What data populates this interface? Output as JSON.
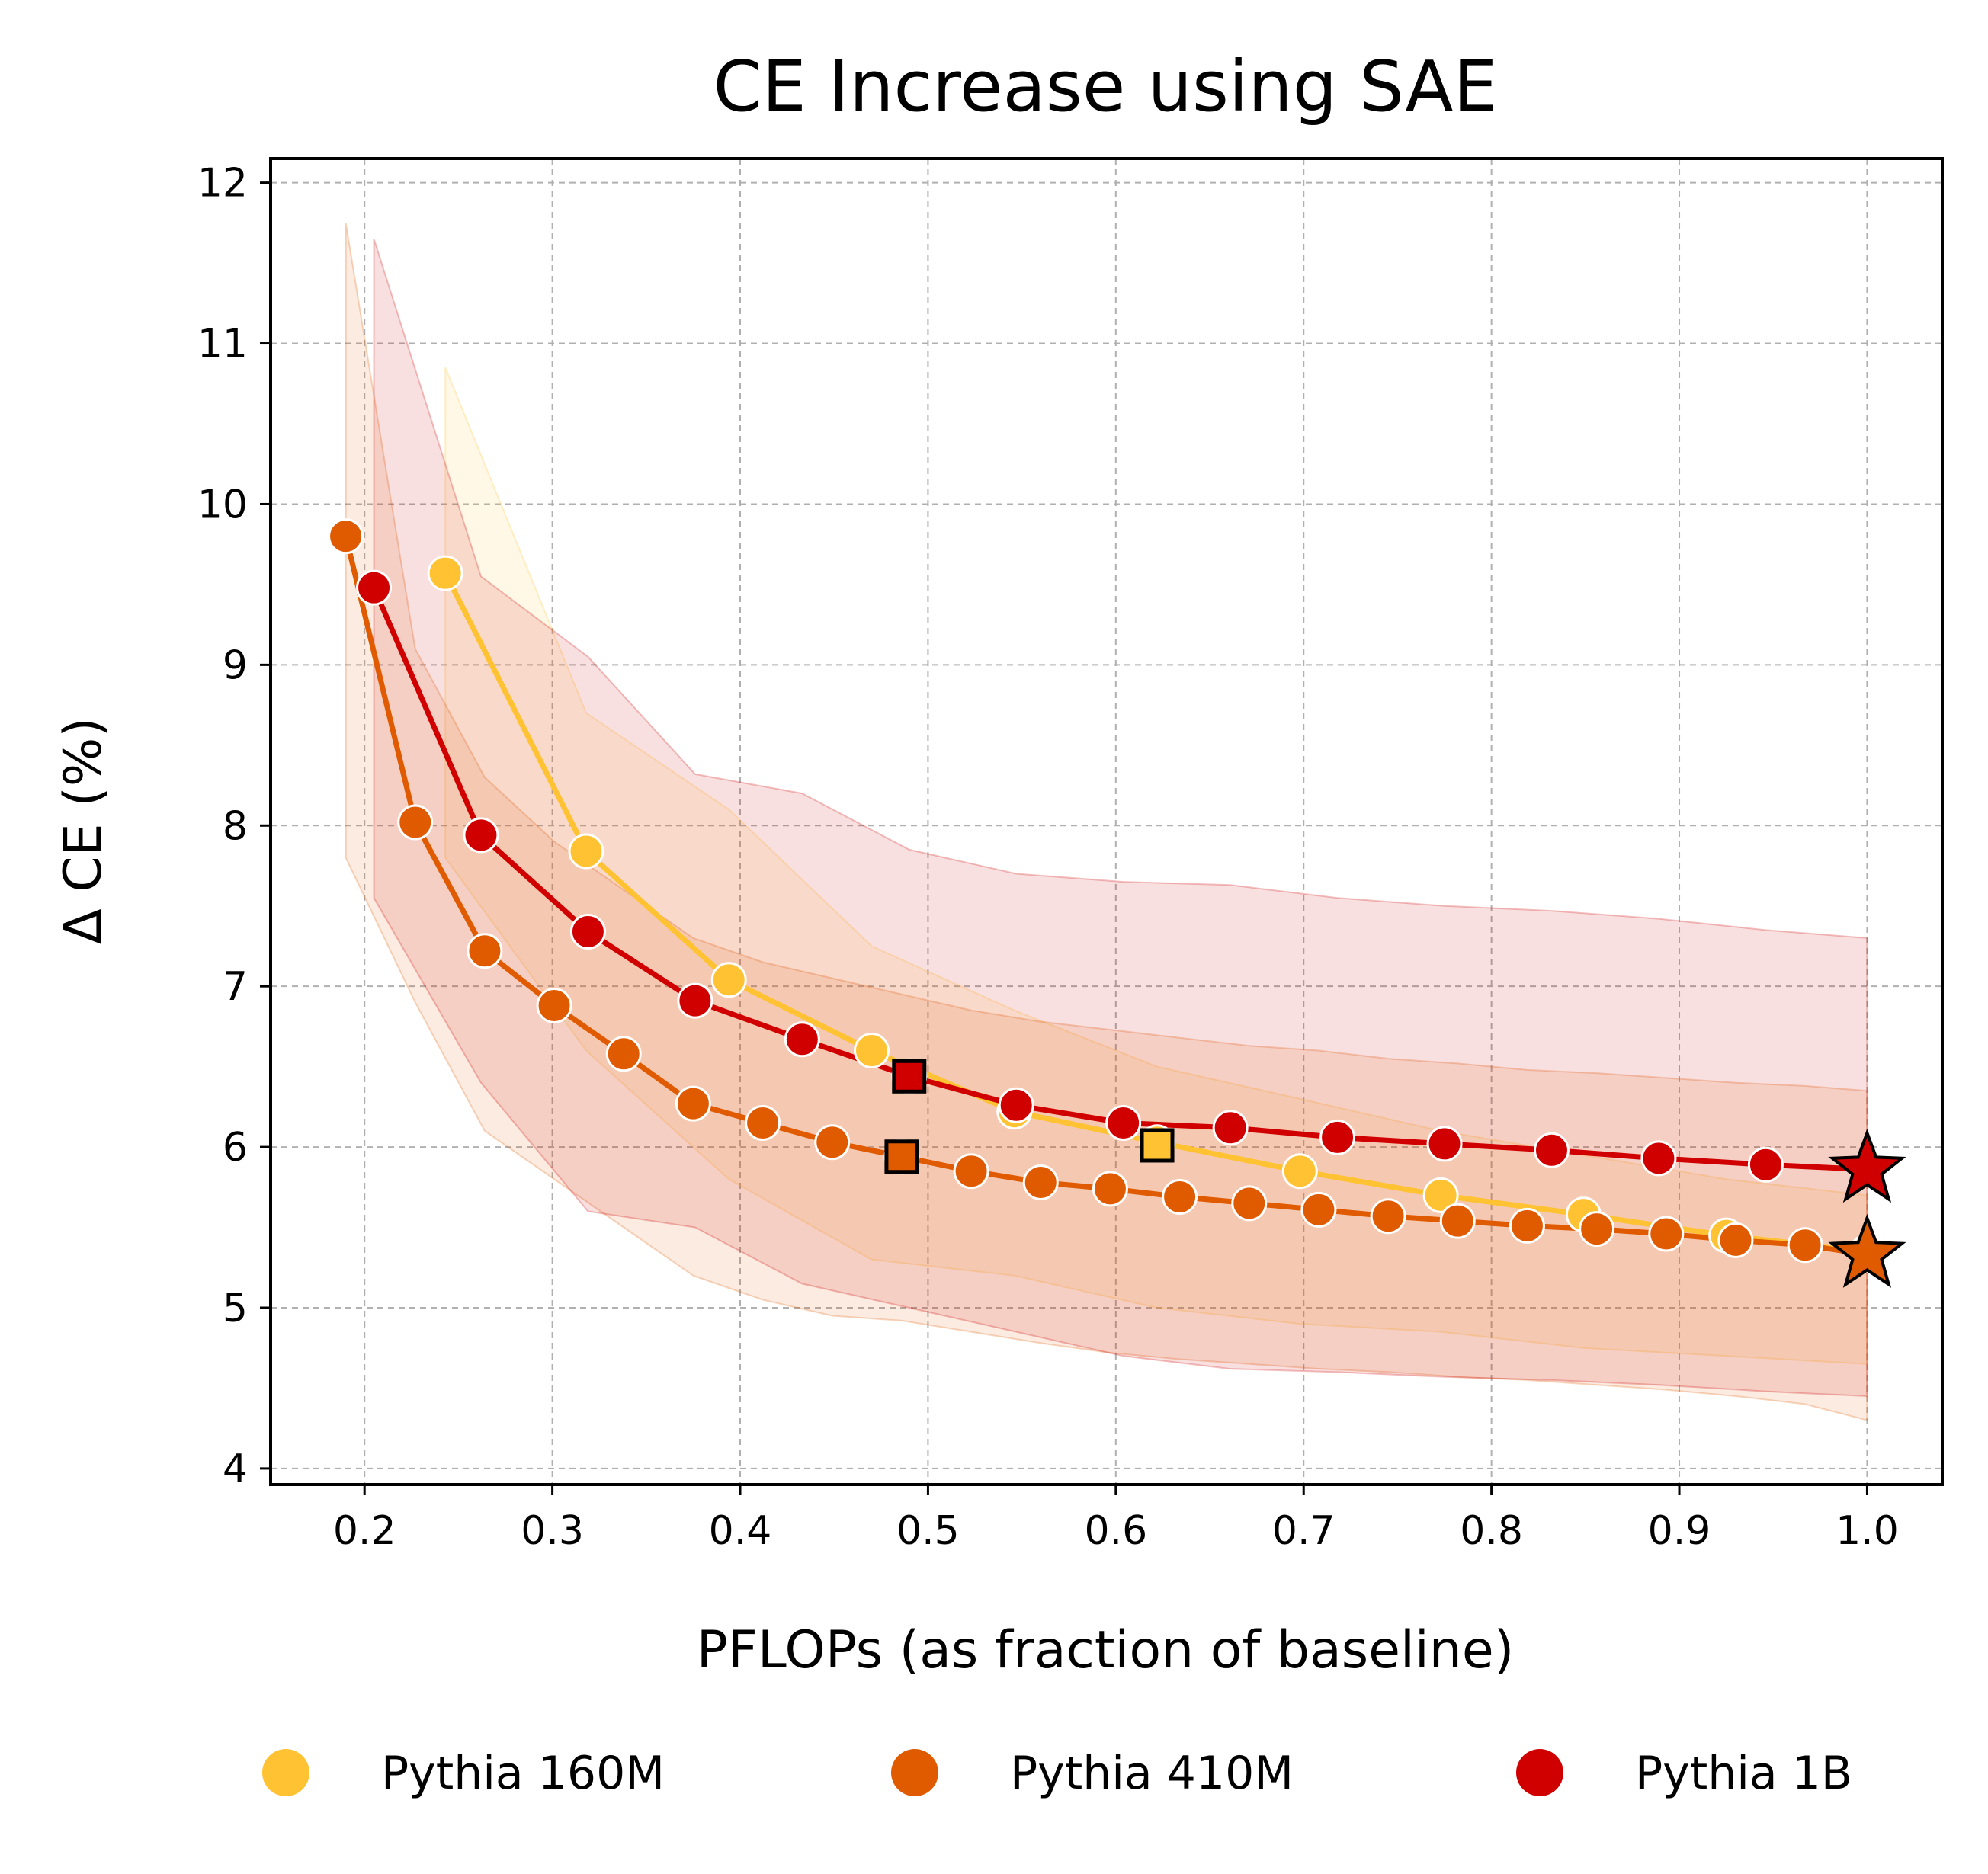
{
  "chart_data": {
    "type": "line",
    "title": "CE Increase using SAE",
    "xlabel": "PFLOPs (as fraction of baseline)",
    "ylabel": "Δ CE (%)",
    "xlim": [
      0.15,
      1.04
    ],
    "ylim": [
      3.9,
      12.15
    ],
    "xticks": [
      "0.2",
      "0.3",
      "0.4",
      "0.5",
      "0.6",
      "0.7",
      "0.8",
      "0.9",
      "1.0"
    ],
    "yticks": [
      "4",
      "5",
      "6",
      "7",
      "8",
      "9",
      "10",
      "11",
      "12"
    ],
    "grid": true,
    "legend_position": "bottom",
    "series": [
      {
        "name": "Pythia 160M",
        "color": "#FFC232",
        "x": [
          0.243,
          0.318,
          0.394,
          0.47,
          0.546,
          0.622,
          0.698,
          0.773,
          0.849,
          0.925,
          1.0
        ],
        "y": [
          9.57,
          7.84,
          7.04,
          6.6,
          6.22,
          6.03,
          5.85,
          5.7,
          5.58,
          5.45,
          5.35
        ],
        "band_upper": [
          10.85,
          8.7,
          8.1,
          7.25,
          6.85,
          6.5,
          6.3,
          6.1,
          5.95,
          5.8,
          5.7
        ],
        "band_lower": [
          7.8,
          6.6,
          5.8,
          5.3,
          5.2,
          5.0,
          4.9,
          4.85,
          4.75,
          4.7,
          4.65
        ],
        "highlight": {
          "x": 0.622,
          "y": 6.01,
          "marker": "square"
        }
      },
      {
        "name": "Pythia 410M",
        "color": "#E05A00",
        "x": [
          0.19,
          0.227,
          0.264,
          0.301,
          0.338,
          0.375,
          0.412,
          0.449,
          0.486,
          0.523,
          0.56,
          0.597,
          0.634,
          0.671,
          0.708,
          0.745,
          0.782,
          0.819,
          0.856,
          0.893,
          0.93,
          0.967,
          1.0
        ],
        "y": [
          9.8,
          8.02,
          7.22,
          6.88,
          6.58,
          6.27,
          6.15,
          6.03,
          5.94,
          5.85,
          5.78,
          5.74,
          5.69,
          5.65,
          5.61,
          5.57,
          5.54,
          5.51,
          5.49,
          5.46,
          5.42,
          5.39,
          5.33
        ],
        "band_upper": [
          11.75,
          9.1,
          8.3,
          7.9,
          7.6,
          7.3,
          7.15,
          7.05,
          6.95,
          6.85,
          6.78,
          6.73,
          6.68,
          6.63,
          6.6,
          6.55,
          6.52,
          6.48,
          6.46,
          6.43,
          6.4,
          6.38,
          6.35
        ],
        "band_lower": [
          7.8,
          6.9,
          6.1,
          5.8,
          5.5,
          5.2,
          5.05,
          4.95,
          4.92,
          4.85,
          4.78,
          4.72,
          4.68,
          4.65,
          4.62,
          4.6,
          4.57,
          4.55,
          4.52,
          4.49,
          4.45,
          4.4,
          4.3
        ],
        "highlight": {
          "x": 0.486,
          "y": 5.94,
          "marker": "square"
        },
        "baseline_star": {
          "x": 1.0,
          "y": 5.33
        }
      },
      {
        "name": "Pythia 1B",
        "color": "#D10000",
        "x": [
          0.205,
          0.262,
          0.319,
          0.376,
          0.433,
          0.49,
          0.547,
          0.604,
          0.661,
          0.718,
          0.775,
          0.832,
          0.889,
          0.946,
          1.0
        ],
        "y": [
          9.48,
          7.94,
          7.34,
          6.91,
          6.67,
          6.44,
          6.26,
          6.15,
          6.12,
          6.06,
          6.02,
          5.98,
          5.93,
          5.89,
          5.86
        ],
        "band_upper": [
          11.65,
          9.55,
          9.05,
          8.32,
          8.2,
          7.85,
          7.7,
          7.65,
          7.63,
          7.55,
          7.5,
          7.47,
          7.42,
          7.35,
          7.3
        ],
        "band_lower": [
          7.55,
          6.4,
          5.6,
          5.5,
          5.15,
          5.0,
          4.85,
          4.7,
          4.62,
          4.6,
          4.57,
          4.55,
          4.52,
          4.48,
          4.45
        ],
        "highlight": {
          "x": 0.49,
          "y": 6.44,
          "marker": "square"
        },
        "baseline_star": {
          "x": 1.0,
          "y": 5.86
        }
      }
    ]
  }
}
